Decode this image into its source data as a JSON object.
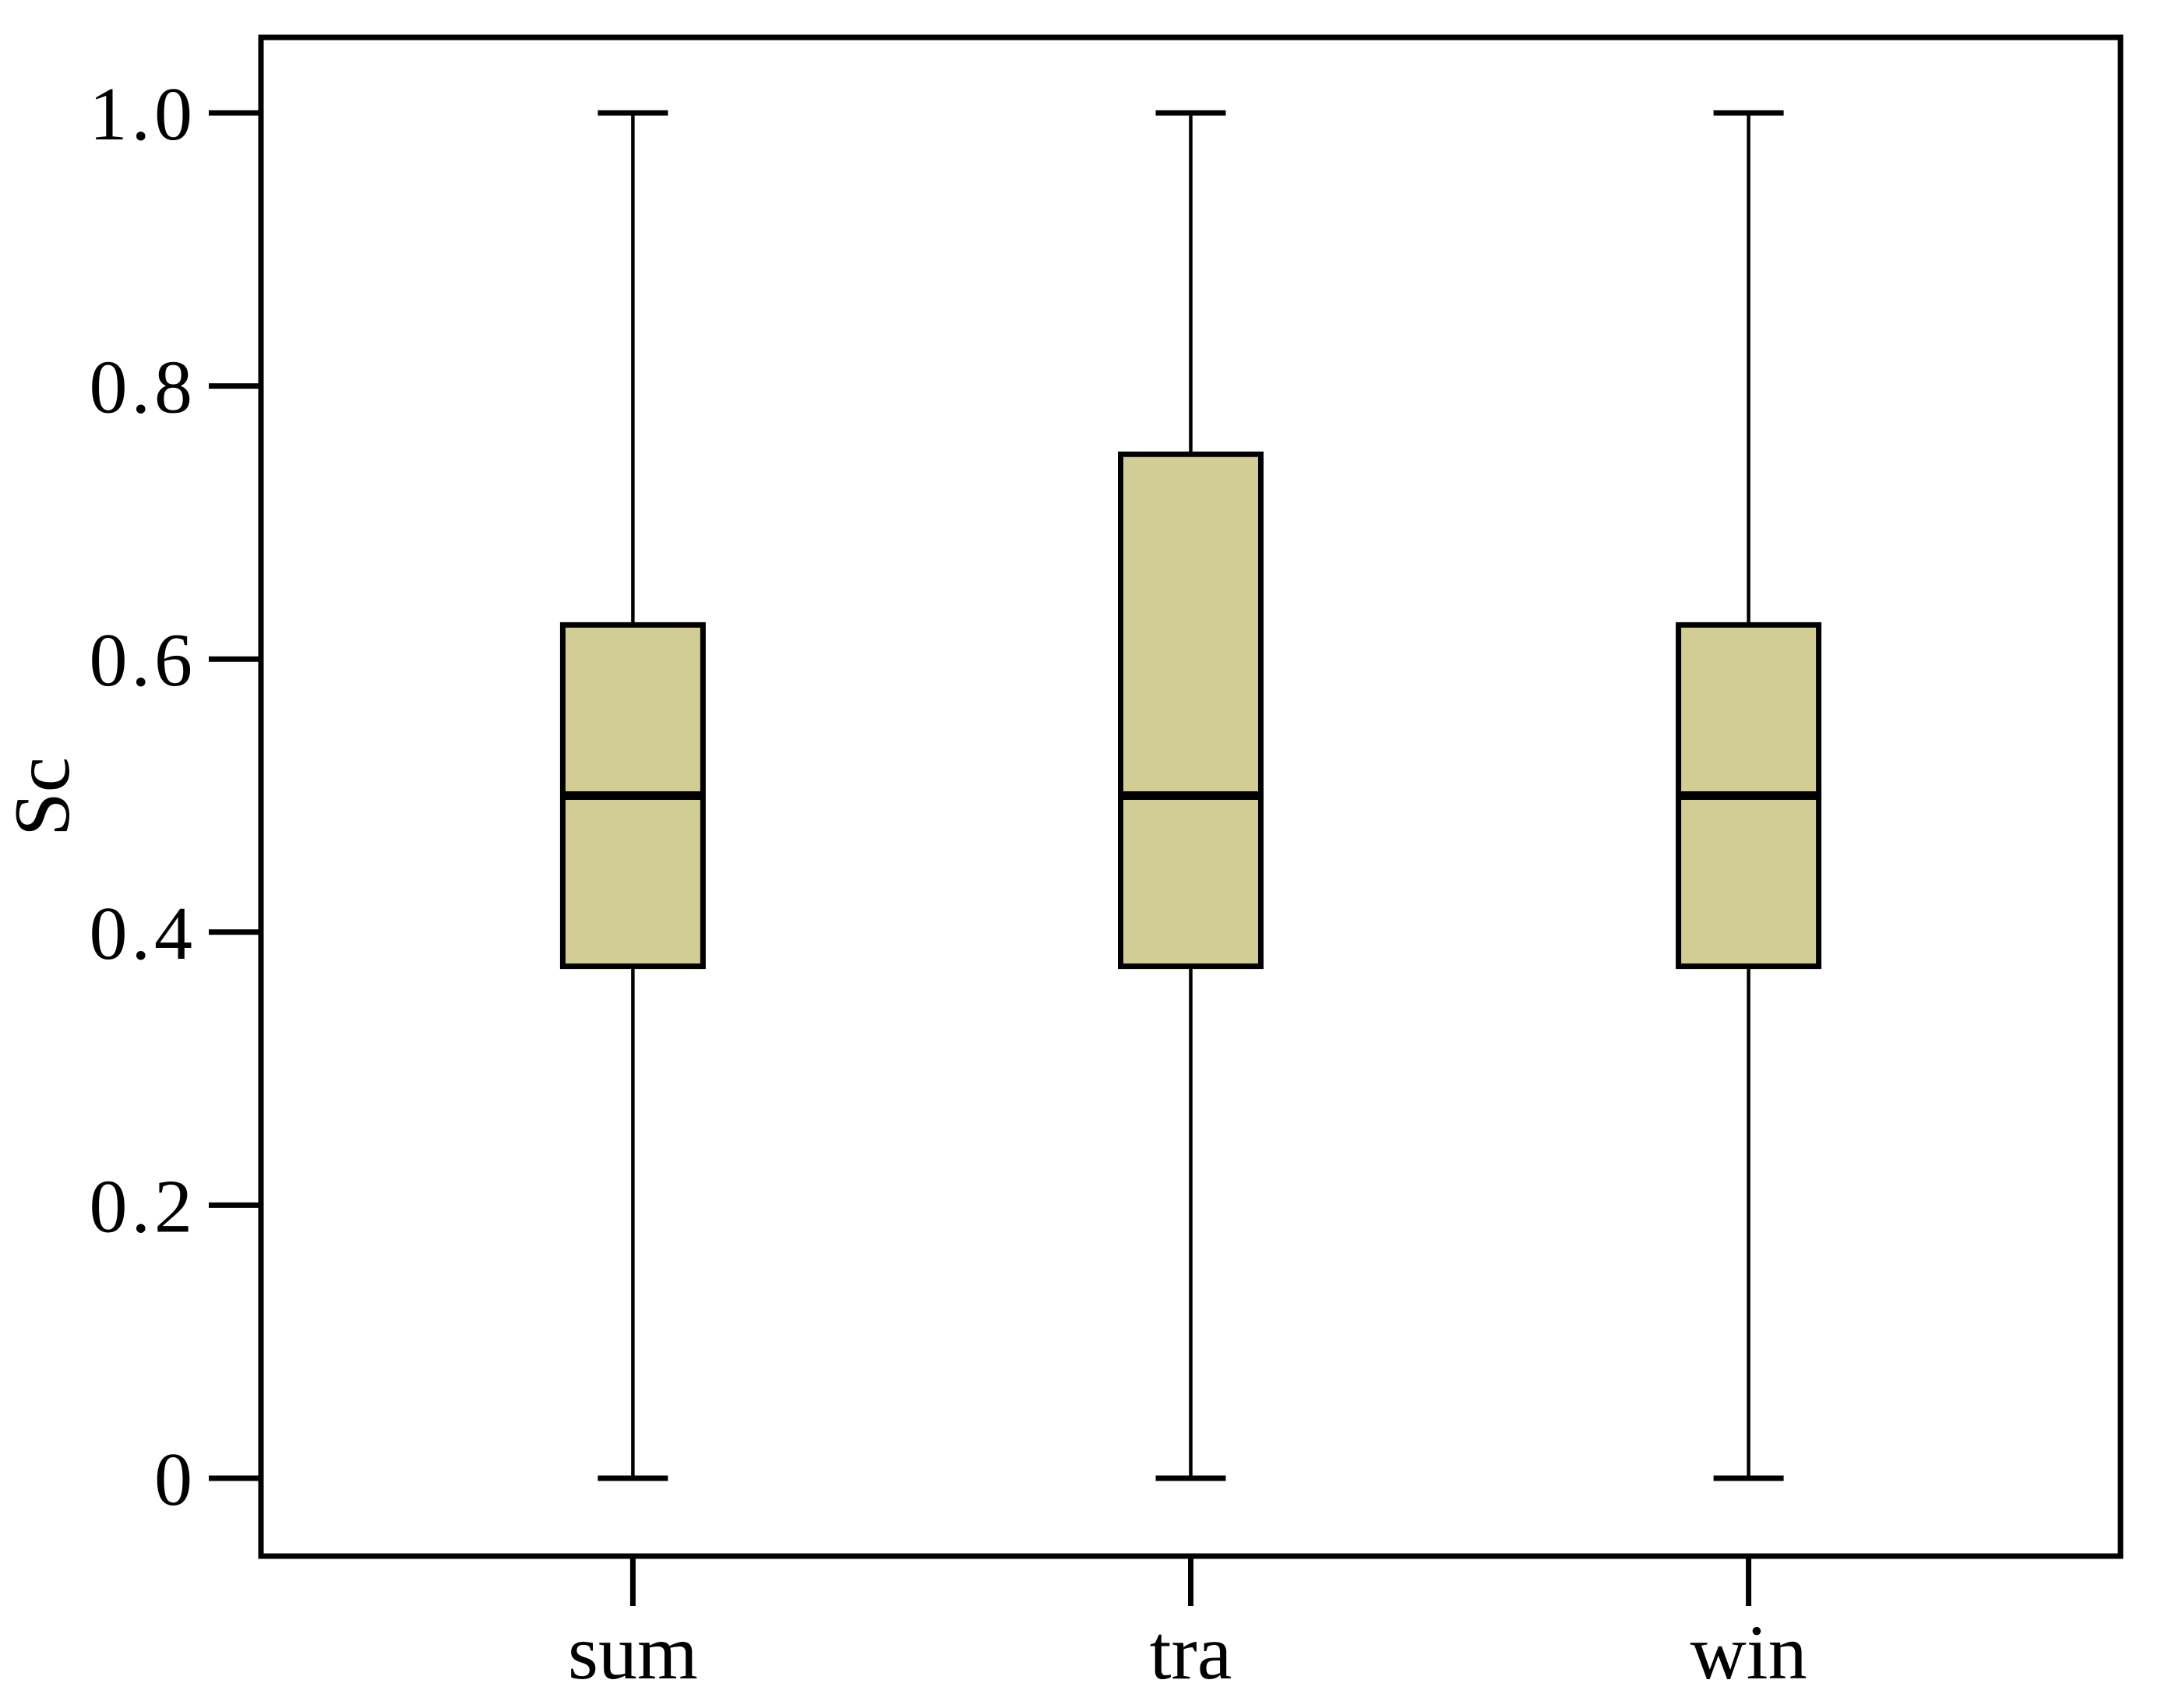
{
  "chart_data": {
    "type": "boxplot",
    "title": "",
    "xlabel": "",
    "ylabel": "Sc",
    "categories": [
      "sum",
      "tra",
      "win"
    ],
    "series": [
      {
        "name": "sum",
        "whisker_low": 0,
        "q1": 0.375,
        "median": 0.5,
        "q3": 0.625,
        "whisker_high": 1.0
      },
      {
        "name": "tra",
        "whisker_low": 0,
        "q1": 0.375,
        "median": 0.5,
        "q3": 0.75,
        "whisker_high": 1.0
      },
      {
        "name": "win",
        "whisker_low": 0,
        "q1": 0.375,
        "median": 0.5,
        "q3": 0.625,
        "whisker_high": 1.0
      }
    ],
    "ylim": [
      0,
      1.0
    ],
    "yticks": [
      0,
      0.2,
      0.4,
      0.6,
      0.8,
      1.0
    ],
    "ytick_labels": [
      "0",
      "0.2",
      "0.4",
      "0.6",
      "0.8",
      "1.0"
    ],
    "grid": false,
    "legend": "none",
    "colors": {
      "box_fill": "#d2cd94",
      "box_border": "#000000",
      "median": "#000000",
      "whisker": "#000000",
      "frame": "#000000",
      "background": "#ffffff"
    }
  }
}
